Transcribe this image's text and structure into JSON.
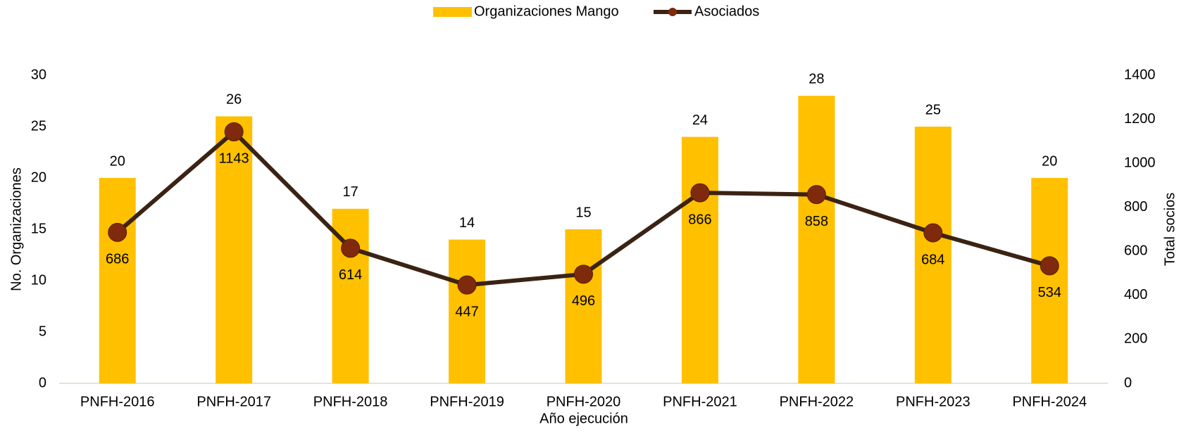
{
  "chart_data": {
    "type": "combo",
    "x_label": "Año ejecución",
    "y_label": "No. Organizaciones",
    "y2_label": "Total socios",
    "categories": [
      "PNFH-2016",
      "PNFH-2017",
      "PNFH-2018",
      "PNFH-2019",
      "PNFH-2020",
      "PNFH-2021",
      "PNFH-2022",
      "PNFH-2023",
      "PNFH-2024"
    ],
    "series": [
      {
        "name": "Organizaciones Mango",
        "type": "bar",
        "color": "#FFC000",
        "values": [
          20,
          26,
          17,
          14,
          15,
          24,
          28,
          25,
          20
        ]
      },
      {
        "name": "Asociados",
        "type": "line",
        "axis": "y2",
        "color": "#3B2314",
        "marker_color": "#7F2A0C",
        "values": [
          686,
          1143,
          614,
          447,
          496,
          866,
          858,
          684,
          534
        ]
      }
    ],
    "ylim": [
      0,
      30
    ],
    "yticks": [
      0,
      5,
      10,
      15,
      20,
      25,
      30
    ],
    "y2lim": [
      0,
      1400
    ],
    "y2ticks": [
      0,
      200,
      400,
      600,
      800,
      1000,
      1200,
      1400
    ],
    "legend": "top"
  }
}
